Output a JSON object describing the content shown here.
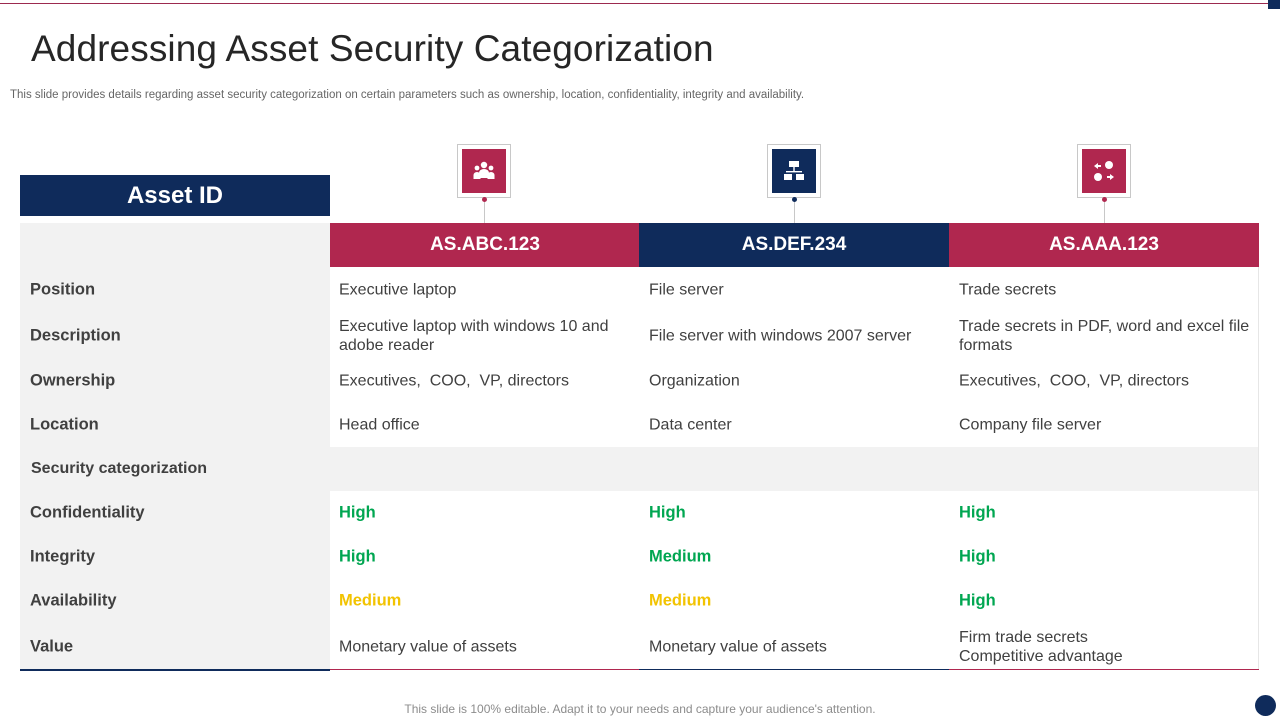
{
  "title": "Addressing Asset Security Categorization",
  "subtitle": "This slide provides details regarding asset security categorization on certain parameters such as ownership, location, confidentiality, integrity and availability.",
  "footer": "This slide is 100% editable. Adapt it to your needs and capture your audience's attention.",
  "colors": {
    "navy": "#0f2b5b",
    "crimson": "#b0274f",
    "high": "#00a651",
    "medium": "#f2c300"
  },
  "table": {
    "header_label": "Asset ID",
    "assets": [
      {
        "id": "AS.ABC.123",
        "icon": "group-people-icon"
      },
      {
        "id": "AS.DEF.234",
        "icon": "network-hierarchy-icon"
      },
      {
        "id": "AS.AAA.123",
        "icon": "shapes-exchange-icon"
      }
    ],
    "rows": [
      {
        "label": "Position",
        "values": [
          "Executive laptop",
          "File server",
          "Trade secrets"
        ]
      },
      {
        "label": "Description",
        "values": [
          "Executive laptop with windows 10 and adobe reader",
          "File server with windows 2007 server",
          "Trade secrets in PDF, word and excel file formats"
        ]
      },
      {
        "label": "Ownership",
        "values": [
          "Executives,  COO,  VP, directors",
          "Organization",
          "Executives,  COO,  VP, directors"
        ]
      },
      {
        "label": "Location",
        "values": [
          "Head office",
          "Data center",
          "Company file server"
        ]
      },
      {
        "label": "Security categorization",
        "values": []
      },
      {
        "label": "Confidentiality",
        "values": [
          "High",
          "High",
          "High"
        ]
      },
      {
        "label": "Integrity",
        "values": [
          "High",
          "Medium",
          "High"
        ]
      },
      {
        "label": "Availability",
        "values": [
          "Medium",
          "Medium",
          "High"
        ]
      },
      {
        "label": "Value",
        "values": [
          "Monetary value of assets",
          "Monetary value of assets",
          "Firm trade secrets\nCompetitive advantage"
        ]
      }
    ]
  }
}
